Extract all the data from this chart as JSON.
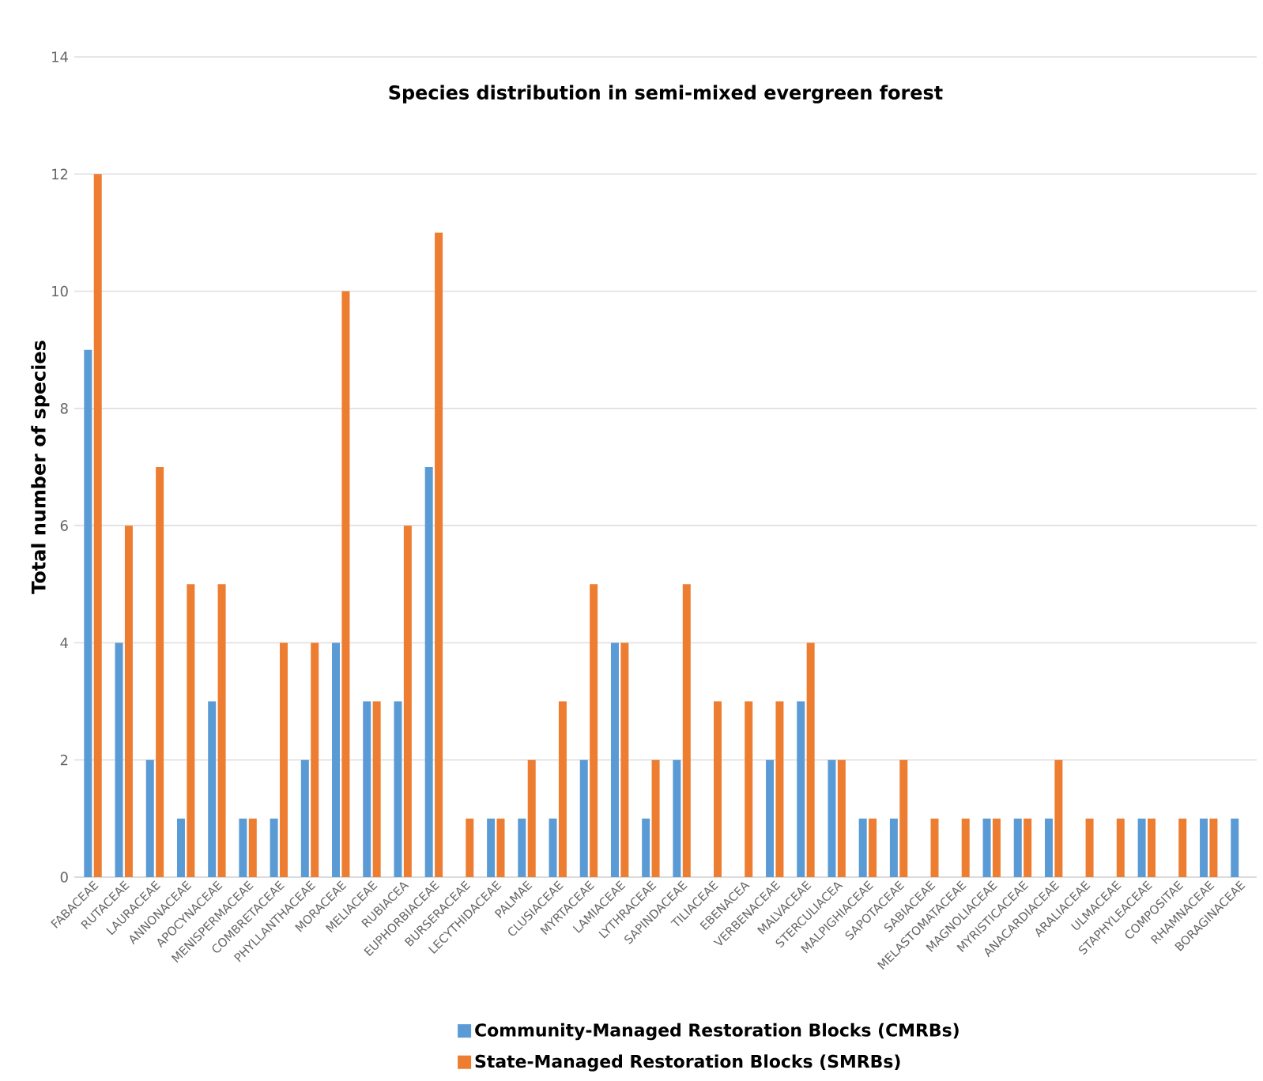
{
  "chart_data": {
    "type": "bar",
    "title": "Species distribution in semi-mixed evergreen forest",
    "ylabel": "Total number of species",
    "categories": [
      "FABACEAE",
      "RUTACEAE",
      "LAURACEAE",
      "ANNONACEAE",
      "APOCYNACEAE",
      "MENISPERMACEAE",
      "COMBRETACEAE",
      "PHYLLANTHACEAE",
      "MORACEAE",
      "MELIACEAE",
      "RUBIACEA",
      "EUPHORBIACEAE",
      "BURSERACEAE",
      "LECYTHIDACEAE",
      "PALMAE",
      "CLUSIACEAE",
      "MYRTACEAE",
      "LAMIACEAE",
      "LYTHRACEAE",
      "SAPINDACEAE",
      "TILIACEAE",
      "EBENACEA",
      "VERBENACEAE",
      "MALVACEAE",
      "STERCULIACEA",
      "MALPIGHIACEAE",
      "SAPOTACEAE",
      "SABIACEAE",
      "MELASTOMATACEAE",
      "MAGNOLIACEAE",
      "MYRISTICACEAE",
      "ANACARDIACEAE",
      "ARALIACEAE",
      "ULMACEAE",
      "STAPHYLEACEAE",
      "COMPOSITAE",
      "RHAMNACEAE",
      "BORAGINACEAE"
    ],
    "series": [
      {
        "name": "Community-Managed Restoration Blocks (CMRBs)",
        "color": "#5b9bd5",
        "values": [
          9,
          4,
          2,
          1,
          3,
          1,
          1,
          2,
          4,
          3,
          3,
          7,
          0,
          1,
          1,
          1,
          2,
          4,
          1,
          2,
          0,
          0,
          2,
          3,
          2,
          1,
          1,
          0,
          0,
          1,
          1,
          1,
          0,
          0,
          1,
          0,
          1,
          1
        ]
      },
      {
        "name": "State-Managed Restoration Blocks (SMRBs)",
        "color": "#ed7d31",
        "values": [
          12,
          6,
          7,
          5,
          5,
          1,
          4,
          4,
          10,
          3,
          6,
          11,
          1,
          1,
          2,
          3,
          5,
          4,
          2,
          5,
          3,
          3,
          3,
          4,
          2,
          1,
          2,
          1,
          1,
          1,
          1,
          2,
          1,
          1,
          1,
          1,
          1,
          null
        ]
      }
    ],
    "ylim": [
      0,
      14
    ],
    "yticks": [
      0,
      2,
      4,
      6,
      8,
      10,
      12,
      14
    ],
    "grid": "y",
    "legend": "bottom"
  }
}
